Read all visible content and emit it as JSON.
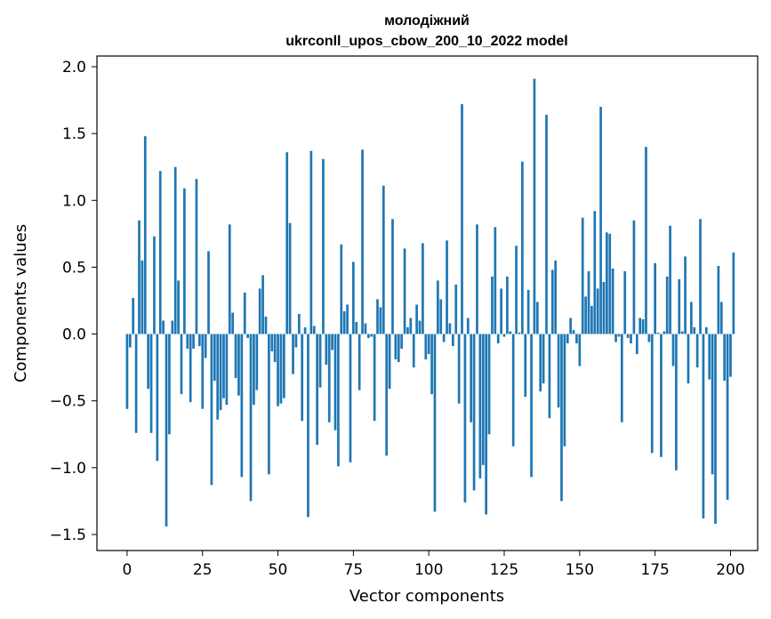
{
  "chart_data": {
    "type": "bar",
    "title_line1": "молодіжний",
    "title_line2": "ukrconll_upos_cbow_200_10_2022 model",
    "xlabel": "Vector components",
    "ylabel": "Components values",
    "xlim": [
      -10,
      209
    ],
    "ylim": [
      -1.62,
      2.08
    ],
    "xticks": [
      0,
      25,
      50,
      75,
      100,
      125,
      150,
      175,
      200
    ],
    "yticks": [
      -1.5,
      -1.0,
      -0.5,
      0.0,
      0.5,
      1.0,
      1.5,
      2.0
    ],
    "ytick_labels": [
      "−1.5",
      "−1.0",
      "−0.5",
      "0.0",
      "0.5",
      "1.0",
      "1.5",
      "2.0"
    ],
    "bar_color": "#1f77b4",
    "grid": false,
    "values": [
      -0.56,
      -0.1,
      0.27,
      -0.74,
      0.85,
      0.55,
      1.48,
      -0.41,
      -0.74,
      0.73,
      -0.95,
      1.22,
      0.1,
      -1.44,
      -0.75,
      0.1,
      1.25,
      0.4,
      -0.45,
      1.09,
      -0.11,
      -0.51,
      -0.11,
      1.16,
      -0.09,
      -0.56,
      -0.18,
      0.62,
      -1.13,
      -0.35,
      -0.64,
      -0.57,
      -0.48,
      -0.53,
      0.82,
      0.16,
      -0.33,
      -0.46,
      -1.07,
      0.31,
      -0.03,
      -1.25,
      -0.53,
      -0.42,
      0.34,
      0.44,
      0.13,
      -1.05,
      -0.13,
      -0.21,
      -0.54,
      -0.52,
      -0.48,
      1.36,
      0.83,
      -0.3,
      -0.1,
      0.15,
      -0.65,
      0.05,
      -1.37,
      1.37,
      0.06,
      -0.83,
      -0.4,
      1.31,
      -0.23,
      -0.66,
      -0.12,
      -0.72,
      -0.99,
      0.67,
      0.17,
      0.22,
      -0.96,
      0.54,
      0.09,
      -0.42,
      1.38,
      0.08,
      -0.03,
      -0.02,
      -0.65,
      0.26,
      0.2,
      1.11,
      -0.91,
      -0.41,
      0.86,
      -0.19,
      -0.21,
      -0.11,
      0.64,
      0.05,
      0.12,
      -0.25,
      0.22,
      0.1,
      0.68,
      -0.19,
      -0.15,
      -0.45,
      -1.33,
      0.4,
      0.26,
      -0.06,
      0.7,
      0.08,
      -0.09,
      0.37,
      -0.52,
      1.72,
      -1.26,
      0.12,
      -0.66,
      -1.17,
      0.82,
      -1.08,
      -0.98,
      -1.35,
      -0.75,
      0.43,
      0.8,
      -0.07,
      0.34,
      -0.02,
      0.43,
      0.02,
      -0.84,
      0.66,
      0.01,
      1.29,
      -0.47,
      0.33,
      -1.07,
      1.91,
      0.24,
      -0.43,
      -0.37,
      1.64,
      -0.63,
      0.48,
      0.55,
      -0.55,
      -1.25,
      -0.84,
      -0.07,
      0.12,
      0.03,
      -0.07,
      -0.24,
      0.87,
      0.28,
      0.47,
      0.21,
      0.92,
      0.34,
      1.7,
      0.39,
      0.76,
      0.75,
      0.49,
      -0.06,
      -0.02,
      -0.66,
      0.47,
      -0.03,
      -0.07,
      0.85,
      -0.15,
      0.12,
      0.11,
      1.4,
      -0.06,
      -0.89,
      0.53,
      0.01,
      -0.92,
      0.02,
      0.43,
      0.81,
      -0.24,
      -1.02,
      0.41,
      0.02,
      0.58,
      -0.37,
      0.24,
      0.05,
      -0.25,
      0.86,
      -1.38,
      0.05,
      -0.34,
      -1.05,
      -1.42,
      0.51,
      0.24,
      -0.35,
      -1.24,
      -0.32,
      0.61
    ]
  }
}
